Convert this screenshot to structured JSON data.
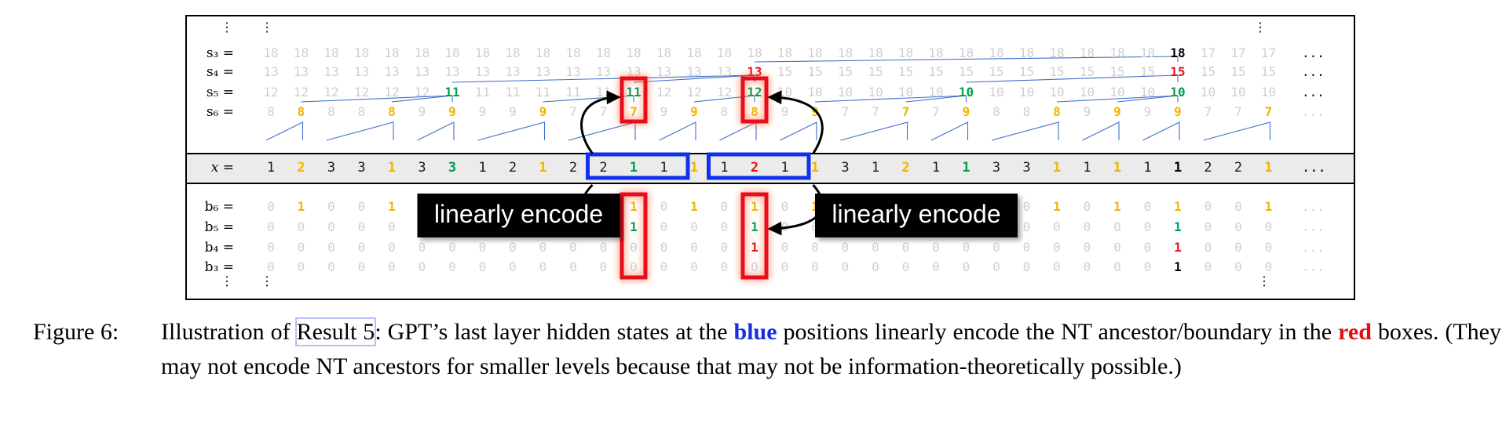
{
  "figure": {
    "row_labels": {
      "s3": "s₃ =",
      "s4": "s₄ =",
      "s5": "s₅ =",
      "s6": "s₆ =",
      "x": "x =",
      "b6": "b₆ =",
      "b5": "b₅ =",
      "b4": "b₄ =",
      "b3": "b₃ ="
    },
    "vdots": "⋮",
    "ellipsis": "...",
    "x_values": [
      "1",
      "2",
      "3",
      "3",
      "1",
      "3",
      "3",
      "1",
      "2",
      "1",
      "2",
      "2",
      "1",
      "1",
      "1",
      "1",
      "2",
      "1",
      "1",
      "3",
      "1",
      "2",
      "1",
      "1",
      "3",
      "3",
      "1",
      "1",
      "1",
      "1",
      "1",
      "2",
      "2",
      "1"
    ],
    "x_colors": [
      "k",
      "o",
      "k",
      "k",
      "o",
      "k",
      "g",
      "k",
      "k",
      "o",
      "k",
      "k",
      "g",
      "k",
      "o",
      "k",
      "r",
      "k",
      "o",
      "k",
      "k",
      "o",
      "k",
      "g",
      "k",
      "k",
      "o",
      "k",
      "o",
      "k",
      "K",
      "k",
      "k",
      "o"
    ],
    "s3": {
      "values": [
        "18",
        "18",
        "18",
        "18",
        "18",
        "18",
        "18",
        "18",
        "18",
        "18",
        "18",
        "18",
        "18",
        "18",
        "18",
        "18",
        "18",
        "18",
        "18",
        "18",
        "18",
        "18",
        "18",
        "18",
        "18",
        "18",
        "18",
        "18",
        "18",
        "18",
        "18",
        "17",
        "17",
        "17"
      ],
      "colors": [
        "f",
        "f",
        "f",
        "f",
        "f",
        "f",
        "f",
        "f",
        "f",
        "f",
        "f",
        "f",
        "f",
        "f",
        "f",
        "f",
        "f",
        "f",
        "f",
        "f",
        "f",
        "f",
        "f",
        "f",
        "f",
        "f",
        "f",
        "f",
        "f",
        "f",
        "K",
        "f",
        "f",
        "f"
      ]
    },
    "s4": {
      "values": [
        "13",
        "13",
        "13",
        "13",
        "13",
        "13",
        "13",
        "13",
        "13",
        "13",
        "13",
        "13",
        "13",
        "13",
        "13",
        "13",
        "13",
        "15",
        "15",
        "15",
        "15",
        "15",
        "15",
        "15",
        "15",
        "15",
        "15",
        "15",
        "15",
        "15",
        "15",
        "15",
        "15",
        "15"
      ],
      "colors": [
        "f",
        "f",
        "f",
        "f",
        "f",
        "f",
        "f",
        "f",
        "f",
        "f",
        "f",
        "f",
        "f",
        "f",
        "f",
        "f",
        "r",
        "f",
        "f",
        "f",
        "f",
        "f",
        "f",
        "f",
        "f",
        "f",
        "f",
        "f",
        "f",
        "f",
        "r",
        "f",
        "f",
        "f"
      ]
    },
    "s5": {
      "values": [
        "12",
        "12",
        "12",
        "12",
        "12",
        "12",
        "11",
        "11",
        "11",
        "11",
        "11",
        "11",
        "11",
        "12",
        "12",
        "12",
        "12",
        "10",
        "10",
        "10",
        "10",
        "10",
        "10",
        "10",
        "10",
        "10",
        "10",
        "10",
        "10",
        "10",
        "10",
        "10",
        "10",
        "10"
      ],
      "colors": [
        "f",
        "f",
        "f",
        "f",
        "f",
        "f",
        "g",
        "f",
        "f",
        "f",
        "f",
        "f",
        "g",
        "f",
        "f",
        "f",
        "g",
        "f",
        "f",
        "f",
        "f",
        "f",
        "f",
        "g",
        "f",
        "f",
        "f",
        "f",
        "f",
        "f",
        "g",
        "f",
        "f",
        "f"
      ]
    },
    "s6": {
      "values": [
        "8",
        "8",
        "8",
        "8",
        "8",
        "9",
        "9",
        "9",
        "9",
        "9",
        "7",
        "7",
        "7",
        "9",
        "9",
        "8",
        "8",
        "9",
        "9",
        "7",
        "7",
        "7",
        "7",
        "9",
        "8",
        "8",
        "8",
        "9",
        "9",
        "9",
        "9",
        "7",
        "7",
        "7"
      ],
      "colors": [
        "f",
        "o",
        "f",
        "f",
        "o",
        "f",
        "o",
        "f",
        "f",
        "o",
        "f",
        "f",
        "o",
        "f",
        "o",
        "f",
        "o",
        "f",
        "o",
        "f",
        "f",
        "o",
        "f",
        "o",
        "f",
        "f",
        "o",
        "f",
        "o",
        "f",
        "o",
        "f",
        "f",
        "o"
      ]
    },
    "b6": {
      "values": [
        "0",
        "1",
        "0",
        "0",
        "1",
        "0",
        "1",
        "0",
        "0",
        "1",
        "0",
        "0",
        "1",
        "0",
        "1",
        "0",
        "1",
        "0",
        "1",
        "0",
        "0",
        "1",
        "0",
        "1",
        "0",
        "0",
        "1",
        "0",
        "1",
        "0",
        "1",
        "0",
        "0",
        "1"
      ],
      "colors": [
        "f",
        "o",
        "f",
        "f",
        "o",
        "f",
        "o",
        "f",
        "f",
        "o",
        "f",
        "f",
        "o",
        "f",
        "o",
        "f",
        "o",
        "f",
        "o",
        "f",
        "f",
        "o",
        "f",
        "o",
        "f",
        "f",
        "o",
        "f",
        "o",
        "f",
        "o",
        "f",
        "f",
        "o"
      ]
    },
    "b5": {
      "values": [
        "0",
        "0",
        "0",
        "0",
        "0",
        "0",
        "1",
        "0",
        "0",
        "0",
        "0",
        "0",
        "1",
        "0",
        "0",
        "0",
        "1",
        "0",
        "0",
        "0",
        "0",
        "0",
        "0",
        "1",
        "0",
        "0",
        "0",
        "0",
        "0",
        "0",
        "1",
        "0",
        "0",
        "0"
      ],
      "colors": [
        "f",
        "f",
        "f",
        "f",
        "f",
        "f",
        "g",
        "f",
        "f",
        "f",
        "f",
        "f",
        "g",
        "f",
        "f",
        "f",
        "g",
        "f",
        "f",
        "f",
        "f",
        "f",
        "f",
        "g",
        "f",
        "f",
        "f",
        "f",
        "f",
        "f",
        "g",
        "f",
        "f",
        "f"
      ]
    },
    "b4": {
      "values": [
        "0",
        "0",
        "0",
        "0",
        "0",
        "0",
        "0",
        "0",
        "0",
        "0",
        "0",
        "0",
        "0",
        "0",
        "0",
        "0",
        "1",
        "0",
        "0",
        "0",
        "0",
        "0",
        "0",
        "0",
        "0",
        "0",
        "0",
        "0",
        "0",
        "0",
        "1",
        "0",
        "0",
        "0"
      ],
      "colors": [
        "f",
        "f",
        "f",
        "f",
        "f",
        "f",
        "f",
        "f",
        "f",
        "f",
        "f",
        "f",
        "f",
        "f",
        "f",
        "f",
        "r",
        "f",
        "f",
        "f",
        "f",
        "f",
        "f",
        "f",
        "f",
        "f",
        "f",
        "f",
        "f",
        "f",
        "r",
        "f",
        "f",
        "f"
      ]
    },
    "b3": {
      "values": [
        "0",
        "0",
        "0",
        "0",
        "0",
        "0",
        "0",
        "0",
        "0",
        "0",
        "0",
        "0",
        "0",
        "0",
        "0",
        "0",
        "0",
        "0",
        "0",
        "0",
        "0",
        "0",
        "0",
        "0",
        "0",
        "0",
        "0",
        "0",
        "0",
        "0",
        "1",
        "0",
        "0",
        "0"
      ],
      "colors": [
        "f",
        "f",
        "f",
        "f",
        "f",
        "f",
        "f",
        "f",
        "f",
        "f",
        "f",
        "f",
        "f",
        "f",
        "f",
        "f",
        "f",
        "f",
        "f",
        "f",
        "f",
        "f",
        "f",
        "f",
        "f",
        "f",
        "f",
        "f",
        "f",
        "f",
        "K",
        "f",
        "f",
        "f"
      ]
    },
    "encode_label_left": "linearly encode",
    "encode_label_right": "linearly encode",
    "palette": {
      "orange": "#f2b400",
      "green": "#00a050",
      "red": "#e8101a",
      "blue": "#1030f0",
      "faint": "#cfcfcf",
      "text": "#1a1a1a",
      "band": "#ebebeb"
    }
  },
  "caption": {
    "label": "Figure 6:",
    "t1": "Illustration of ",
    "ref": "Result 5",
    "t2": ":  GPT’s last layer hidden states at the ",
    "blue_word": "blue",
    "t3": " positions linearly encode the NT ancestor/boundary in the ",
    "red_word": "red",
    "t4": " boxes. (They may not encode NT ancestors for smaller levels because that may not be information-theoretically possible.)"
  }
}
